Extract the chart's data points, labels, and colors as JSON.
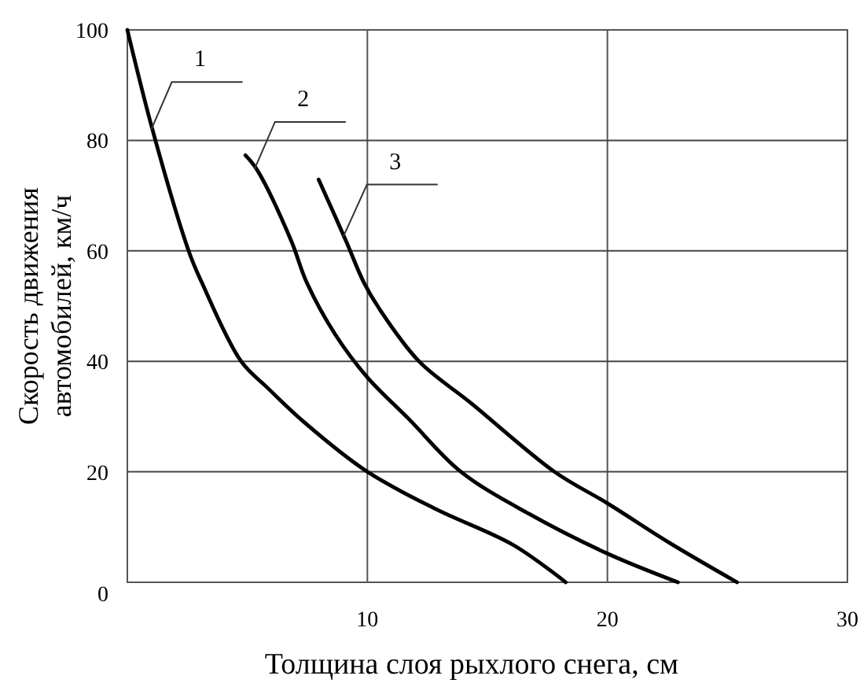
{
  "chart_data": {
    "type": "line",
    "xlabel": "Толщина слоя рыхлого снега, см",
    "ylabel": "Скорость движения\nавтомобилей, км/ч",
    "xlim": [
      0,
      30
    ],
    "ylim": [
      0,
      100
    ],
    "xticks": [
      10,
      20,
      30
    ],
    "yticks": [
      0,
      20,
      40,
      60,
      80,
      100
    ],
    "grid": true,
    "marker": "none",
    "line_style": "solid",
    "series": [
      {
        "color": "#000000",
        "x": [
          0,
          1.05,
          2.57,
          3.1,
          4.74,
          5.84,
          7.36,
          10,
          12.83,
          16.1,
          18.26
        ],
        "values": [
          100,
          81.9,
          59.8,
          54.3,
          40,
          35.2,
          29,
          20,
          13.3,
          6.7,
          0
        ]
      },
      {
        "color": "#000000",
        "x": [
          4.92,
          5.4,
          6.82,
          7.47,
          8.67,
          10,
          11.74,
          13.9,
          16.73,
          20,
          22.94
        ],
        "values": [
          77.3,
          74.7,
          61.9,
          54.3,
          44.8,
          37.1,
          29.5,
          20,
          12.4,
          5.2,
          0
        ]
      },
      {
        "color": "#000000",
        "x": [
          7.97,
          9.1,
          9.85,
          10.5,
          12.15,
          14.33,
          17.8,
          20,
          22.6,
          25.4
        ],
        "values": [
          72.9,
          61.9,
          54.3,
          49.5,
          40,
          32.4,
          20,
          14.3,
          7.1,
          0
        ]
      }
    ],
    "annotations": [
      {
        "text": "1",
        "x": 1.0,
        "y": 82
      },
      {
        "text": "2",
        "x": 5.3,
        "y": 74.8
      },
      {
        "text": "3",
        "x": 9.0,
        "y": 62.6
      }
    ]
  }
}
